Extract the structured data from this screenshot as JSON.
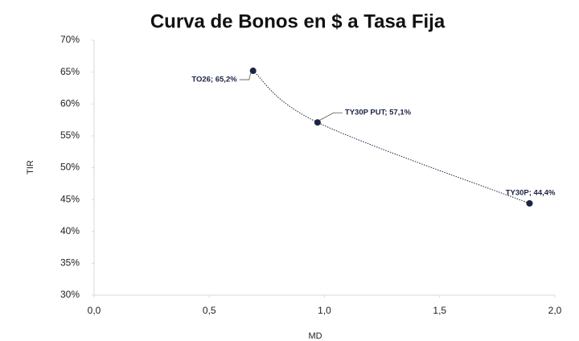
{
  "chart_data": {
    "type": "scatter",
    "title": "Curva de Bonos en $ a Tasa Fija",
    "xlabel": "MD",
    "ylabel": "TIR",
    "series": [
      {
        "color": "#1b2443",
        "x": [
          0.69,
          0.97,
          1.89
        ],
        "values": [
          65.2,
          57.1,
          44.4
        ],
        "value_labels": [
          "TO26; 65,2%",
          "TY30P PUT; 57,1%",
          "TY30P; 44,4%"
        ]
      }
    ],
    "xlim": [
      0,
      2
    ],
    "xticks": [
      {
        "value": 0,
        "label": "0,0"
      },
      {
        "value": 0.5,
        "label": "0,5"
      },
      {
        "value": 1,
        "label": "1,0"
      },
      {
        "value": 1.5,
        "label": "1,5"
      },
      {
        "value": 2,
        "label": "2,0"
      }
    ],
    "ylim": [
      30,
      70
    ],
    "yticks": [
      {
        "value": 30,
        "label": "30%"
      },
      {
        "value": 35,
        "label": "35%"
      },
      {
        "value": 40,
        "label": "40%"
      },
      {
        "value": 45,
        "label": "45%"
      },
      {
        "value": 50,
        "label": "50%"
      },
      {
        "value": 55,
        "label": "55%"
      },
      {
        "value": 60,
        "label": "60%"
      },
      {
        "value": 65,
        "label": "65%"
      },
      {
        "value": 70,
        "label": "70%"
      }
    ],
    "grid": false
  }
}
